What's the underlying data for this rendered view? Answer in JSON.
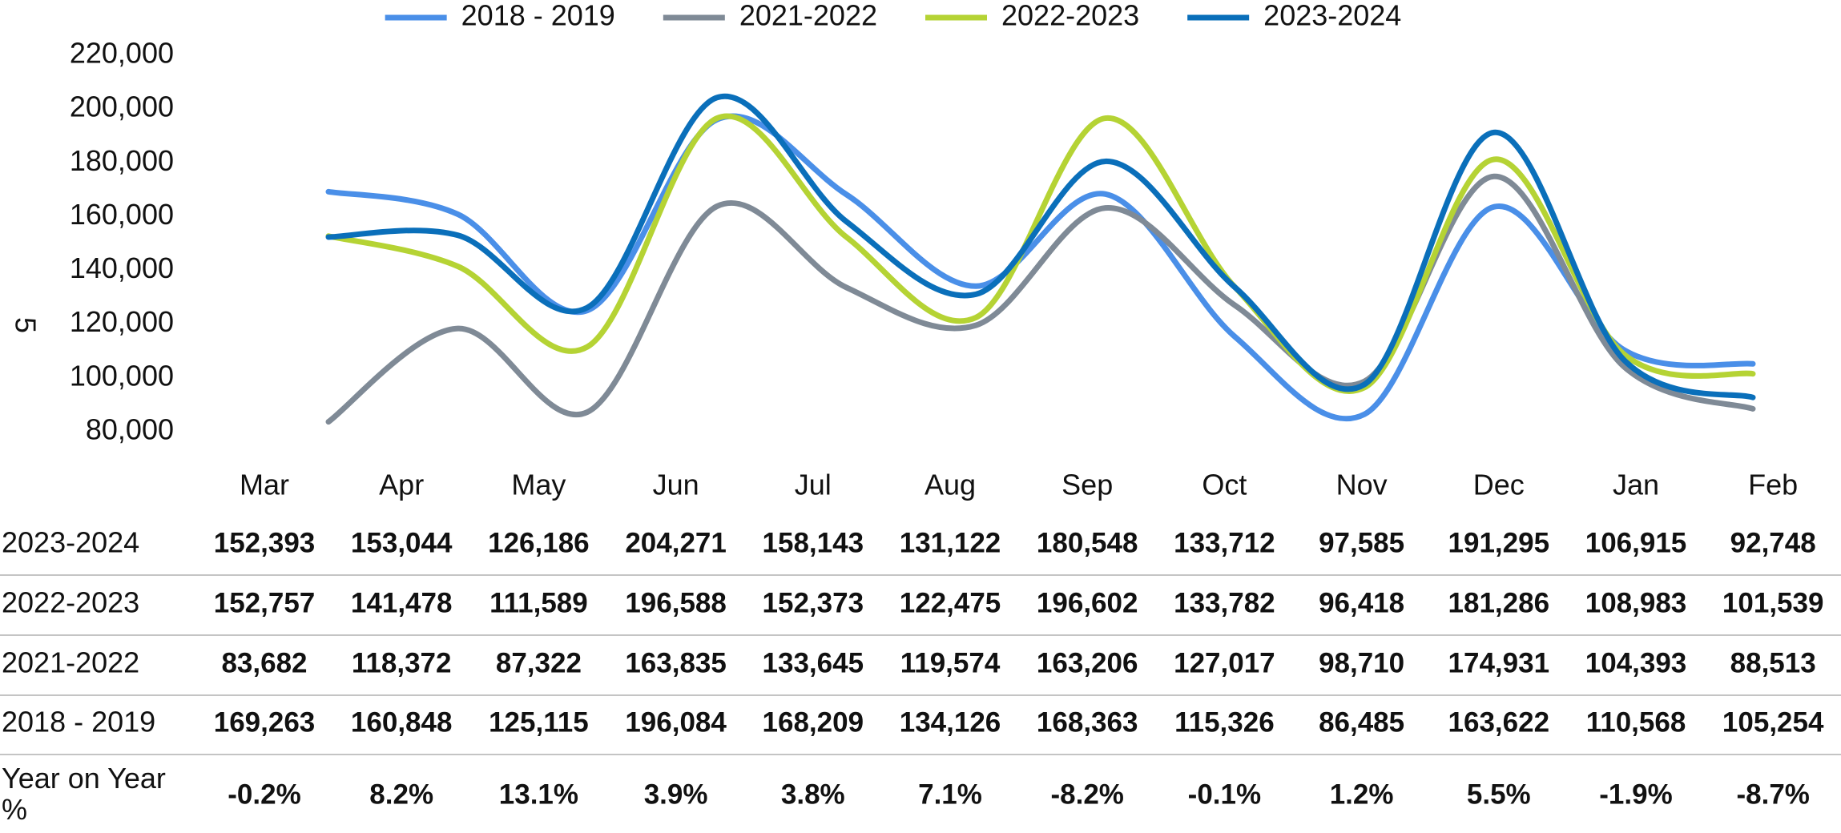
{
  "chart_data": {
    "type": "line",
    "y_label": "5",
    "categories": [
      "Mar",
      "Apr",
      "May",
      "Jun",
      "Jul",
      "Aug",
      "Sep",
      "Oct",
      "Nov",
      "Dec",
      "Jan",
      "Feb"
    ],
    "series": [
      {
        "name": "2018 - 2019",
        "color": "#4a8fe8",
        "values": [
          169263,
          160848,
          125115,
          196084,
          168209,
          134126,
          168363,
          115326,
          86485,
          163622,
          110568,
          105254
        ],
        "value_labels": [
          "169,263",
          "160,848",
          "125,115",
          "196,084",
          "168,209",
          "134,126",
          "168,363",
          "115,326",
          "86,485",
          "163,622",
          "110,568",
          "105,254"
        ]
      },
      {
        "name": "2021-2022",
        "color": "#7f8a96",
        "values": [
          83682,
          118372,
          87322,
          163835,
          133645,
          119574,
          163206,
          127017,
          98710,
          174931,
          104393,
          88513
        ],
        "value_labels": [
          "83,682",
          "118,372",
          "87,322",
          "163,835",
          "133,645",
          "119,574",
          "163,206",
          "127,017",
          "98,710",
          "174,931",
          "104,393",
          "88,513"
        ]
      },
      {
        "name": "2022-2023",
        "color": "#b5d334",
        "values": [
          152757,
          141478,
          111589,
          196588,
          152373,
          122475,
          196602,
          133782,
          96418,
          181286,
          108983,
          101539
        ],
        "value_labels": [
          "152,757",
          "141,478",
          "111,589",
          "196,588",
          "152,373",
          "122,475",
          "196,602",
          "133,782",
          "96,418",
          "181,286",
          "108,983",
          "101,539"
        ]
      },
      {
        "name": "2023-2024",
        "color": "#0a6fba",
        "values": [
          152393,
          153044,
          126186,
          204271,
          158143,
          131122,
          180548,
          133712,
          97585,
          191295,
          106915,
          92748
        ],
        "value_labels": [
          "152,393",
          "153,044",
          "126,186",
          "204,271",
          "158,143",
          "131,122",
          "180,548",
          "133,712",
          "97,585",
          "191,295",
          "106,915",
          "92,748"
        ]
      }
    ],
    "yoy": {
      "label": "Year on Year %",
      "values": [
        -0.2,
        8.2,
        13.1,
        3.9,
        3.8,
        7.1,
        -8.2,
        -0.1,
        1.2,
        5.5,
        -1.9,
        -8.7
      ],
      "value_labels": [
        "-0.2%",
        "8.2%",
        "13.1%",
        "3.9%",
        "3.8%",
        "7.1%",
        "-8.2%",
        "-0.1%",
        "1.2%",
        "5.5%",
        "-1.9%",
        "-8.7%"
      ],
      "colors": [
        "#e0571c",
        "#17866a",
        "#17866a",
        "#17866a",
        "#17866a",
        "#17866a",
        "#c8283c",
        "#e0571c",
        "#17866a",
        "#17866a",
        "#e0571c",
        "#c8283c"
      ]
    },
    "ylim": [
      80000,
      220000
    ],
    "yticks": [
      {
        "value": 80000,
        "label": "80,000"
      },
      {
        "value": 100000,
        "label": "100,000"
      },
      {
        "value": 120000,
        "label": "120,000"
      },
      {
        "value": 140000,
        "label": "140,000"
      },
      {
        "value": 160000,
        "label": "160,000"
      },
      {
        "value": 180000,
        "label": "180,000"
      },
      {
        "value": 200000,
        "label": "200,000"
      },
      {
        "value": 220000,
        "label": "220,000"
      }
    ],
    "grid": false,
    "smooth": true,
    "legend": "top"
  }
}
